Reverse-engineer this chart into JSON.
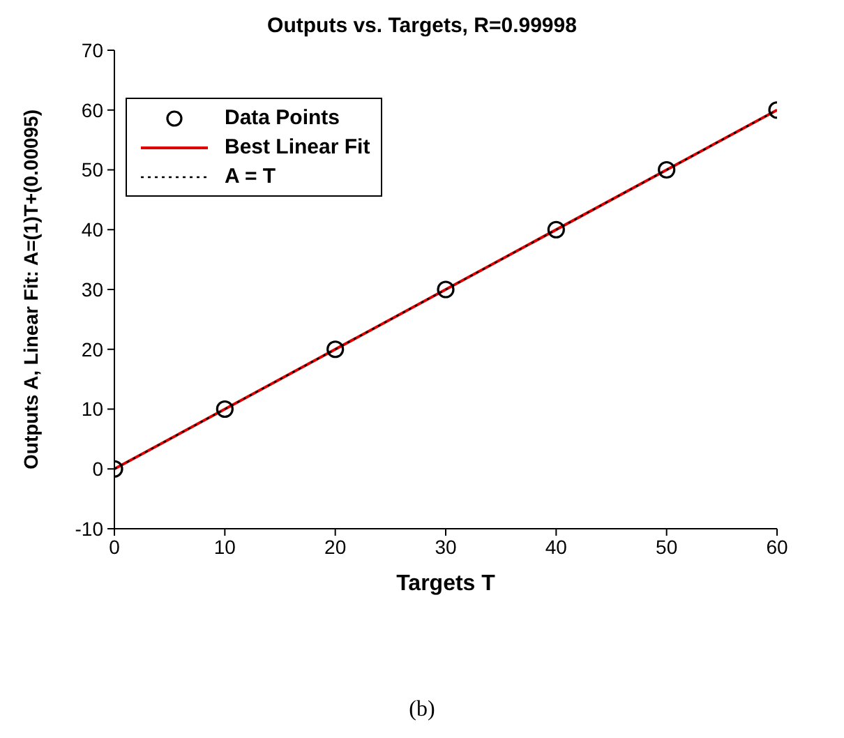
{
  "chart_data": {
    "type": "scatter",
    "title": "Outputs vs. Targets, R=0.99998",
    "xlabel": "Targets T",
    "ylabel": "Outputs A, Linear Fit: A=(1)T+(0.00095)",
    "annotations": [
      "(b)"
    ],
    "series": [
      {
        "name": "Data Points",
        "color": "#000000",
        "marker": "circle",
        "x": [
          0,
          10,
          20,
          30,
          40,
          50,
          60
        ],
        "values": [
          0,
          10,
          20,
          30,
          40,
          50,
          60
        ]
      },
      {
        "name": "Best Linear Fit",
        "type": "line",
        "color": "#e00000",
        "line_style": "solid",
        "marker": "none",
        "x": [
          0,
          60
        ],
        "values": [
          0,
          60
        ]
      },
      {
        "name": "A = T",
        "type": "line",
        "color": "#000000",
        "line_style": "dotted",
        "marker": "none",
        "x": [
          0,
          60
        ],
        "values": [
          0,
          60
        ]
      }
    ],
    "xlim": [
      0,
      60
    ],
    "xticks": [
      0,
      10,
      20,
      30,
      40,
      50,
      60
    ],
    "ylim": [
      -10,
      70
    ],
    "yticks": [
      -10,
      0,
      10,
      20,
      30,
      40,
      50,
      60,
      70
    ],
    "grid": false,
    "legend": "top left"
  }
}
